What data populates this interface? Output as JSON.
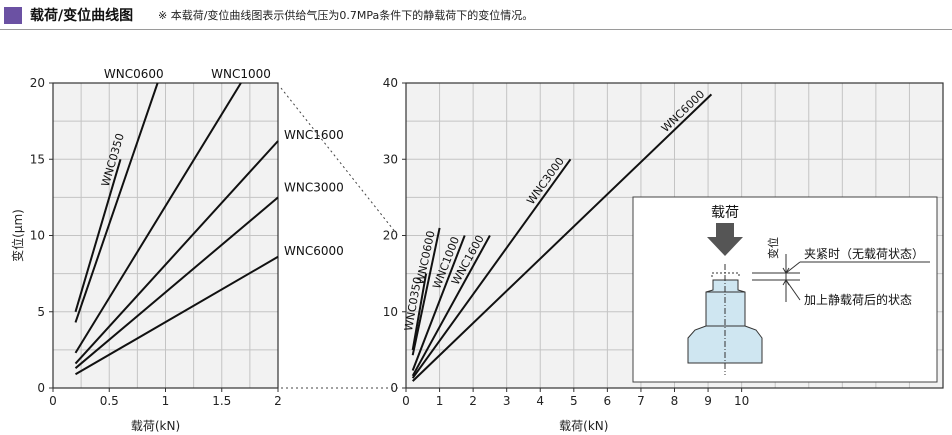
{
  "header": {
    "title": "载荷/变位曲线图",
    "note": "※ 本载荷/变位曲线图表示供给气压为0.7MPa条件下的静载荷下的变位情况。",
    "accent_color": "#6b51a3"
  },
  "colors": {
    "plot_bg": "#f2f2f2",
    "grid": "#c4c4c4",
    "line": "#111111",
    "part_fill": "#cfe6f1"
  },
  "inset": {
    "load_label": "载荷",
    "disp_label": "变位",
    "state_clamped": "夹紧时（无载荷状态）",
    "state_loaded": "加上静载荷后的状态",
    "arrow_icon": "down-arrow-icon"
  },
  "chart_data": [
    {
      "type": "line",
      "xlabel": "载荷(kN)",
      "ylabel": "变位(μm)",
      "xlim": [
        0,
        2
      ],
      "ylim": [
        0,
        20
      ],
      "xticks": [
        "0",
        "0.5",
        "1",
        "1.5",
        "2"
      ],
      "yticks": [
        "0",
        "5",
        "10",
        "15",
        "20"
      ],
      "grid": true,
      "series": [
        {
          "name": "WNC0350",
          "points": [
            [
              0.2,
              5
            ],
            [
              0.6,
              15
            ]
          ]
        },
        {
          "name": "WNC0600",
          "points": [
            [
              0.2,
              4.3
            ],
            [
              0.93,
              20
            ]
          ]
        },
        {
          "name": "WNC1000",
          "points": [
            [
              0.2,
              2.3
            ],
            [
              1.67,
              20
            ]
          ]
        },
        {
          "name": "WNC1600",
          "points": [
            [
              0.2,
              1.6
            ],
            [
              2,
              16.2
            ]
          ]
        },
        {
          "name": "WNC3000",
          "points": [
            [
              0.2,
              1.3
            ],
            [
              2,
              12.5
            ]
          ]
        },
        {
          "name": "WNC6000",
          "points": [
            [
              0.2,
              0.9
            ],
            [
              2,
              8.6
            ]
          ]
        }
      ]
    },
    {
      "type": "line",
      "xlabel": "载荷(kN)",
      "ylabel": "",
      "xlim": [
        0,
        16
      ],
      "ylim": [
        0,
        40
      ],
      "xticks": [
        "0",
        "1",
        "2",
        "3",
        "4",
        "5",
        "6",
        "7",
        "8",
        "9",
        "10"
      ],
      "yticks": [
        "0",
        "10",
        "20",
        "30",
        "40"
      ],
      "grid": true,
      "series": [
        {
          "name": "WNC0350",
          "points": [
            [
              0.2,
              5
            ],
            [
              0.6,
              15
            ]
          ]
        },
        {
          "name": "WNC0600",
          "points": [
            [
              0.2,
              4.3
            ],
            [
              1,
              21
            ]
          ]
        },
        {
          "name": "WNC1000",
          "points": [
            [
              0.2,
              2.3
            ],
            [
              1.75,
              20
            ]
          ]
        },
        {
          "name": "WNC1600",
          "points": [
            [
              0.2,
              1.6
            ],
            [
              2.5,
              20
            ]
          ]
        },
        {
          "name": "WNC3000",
          "points": [
            [
              0.2,
              1.3
            ],
            [
              4.9,
              30
            ]
          ]
        },
        {
          "name": "WNC6000",
          "points": [
            [
              0.2,
              0.9
            ],
            [
              9.1,
              38.5
            ]
          ]
        }
      ]
    }
  ]
}
